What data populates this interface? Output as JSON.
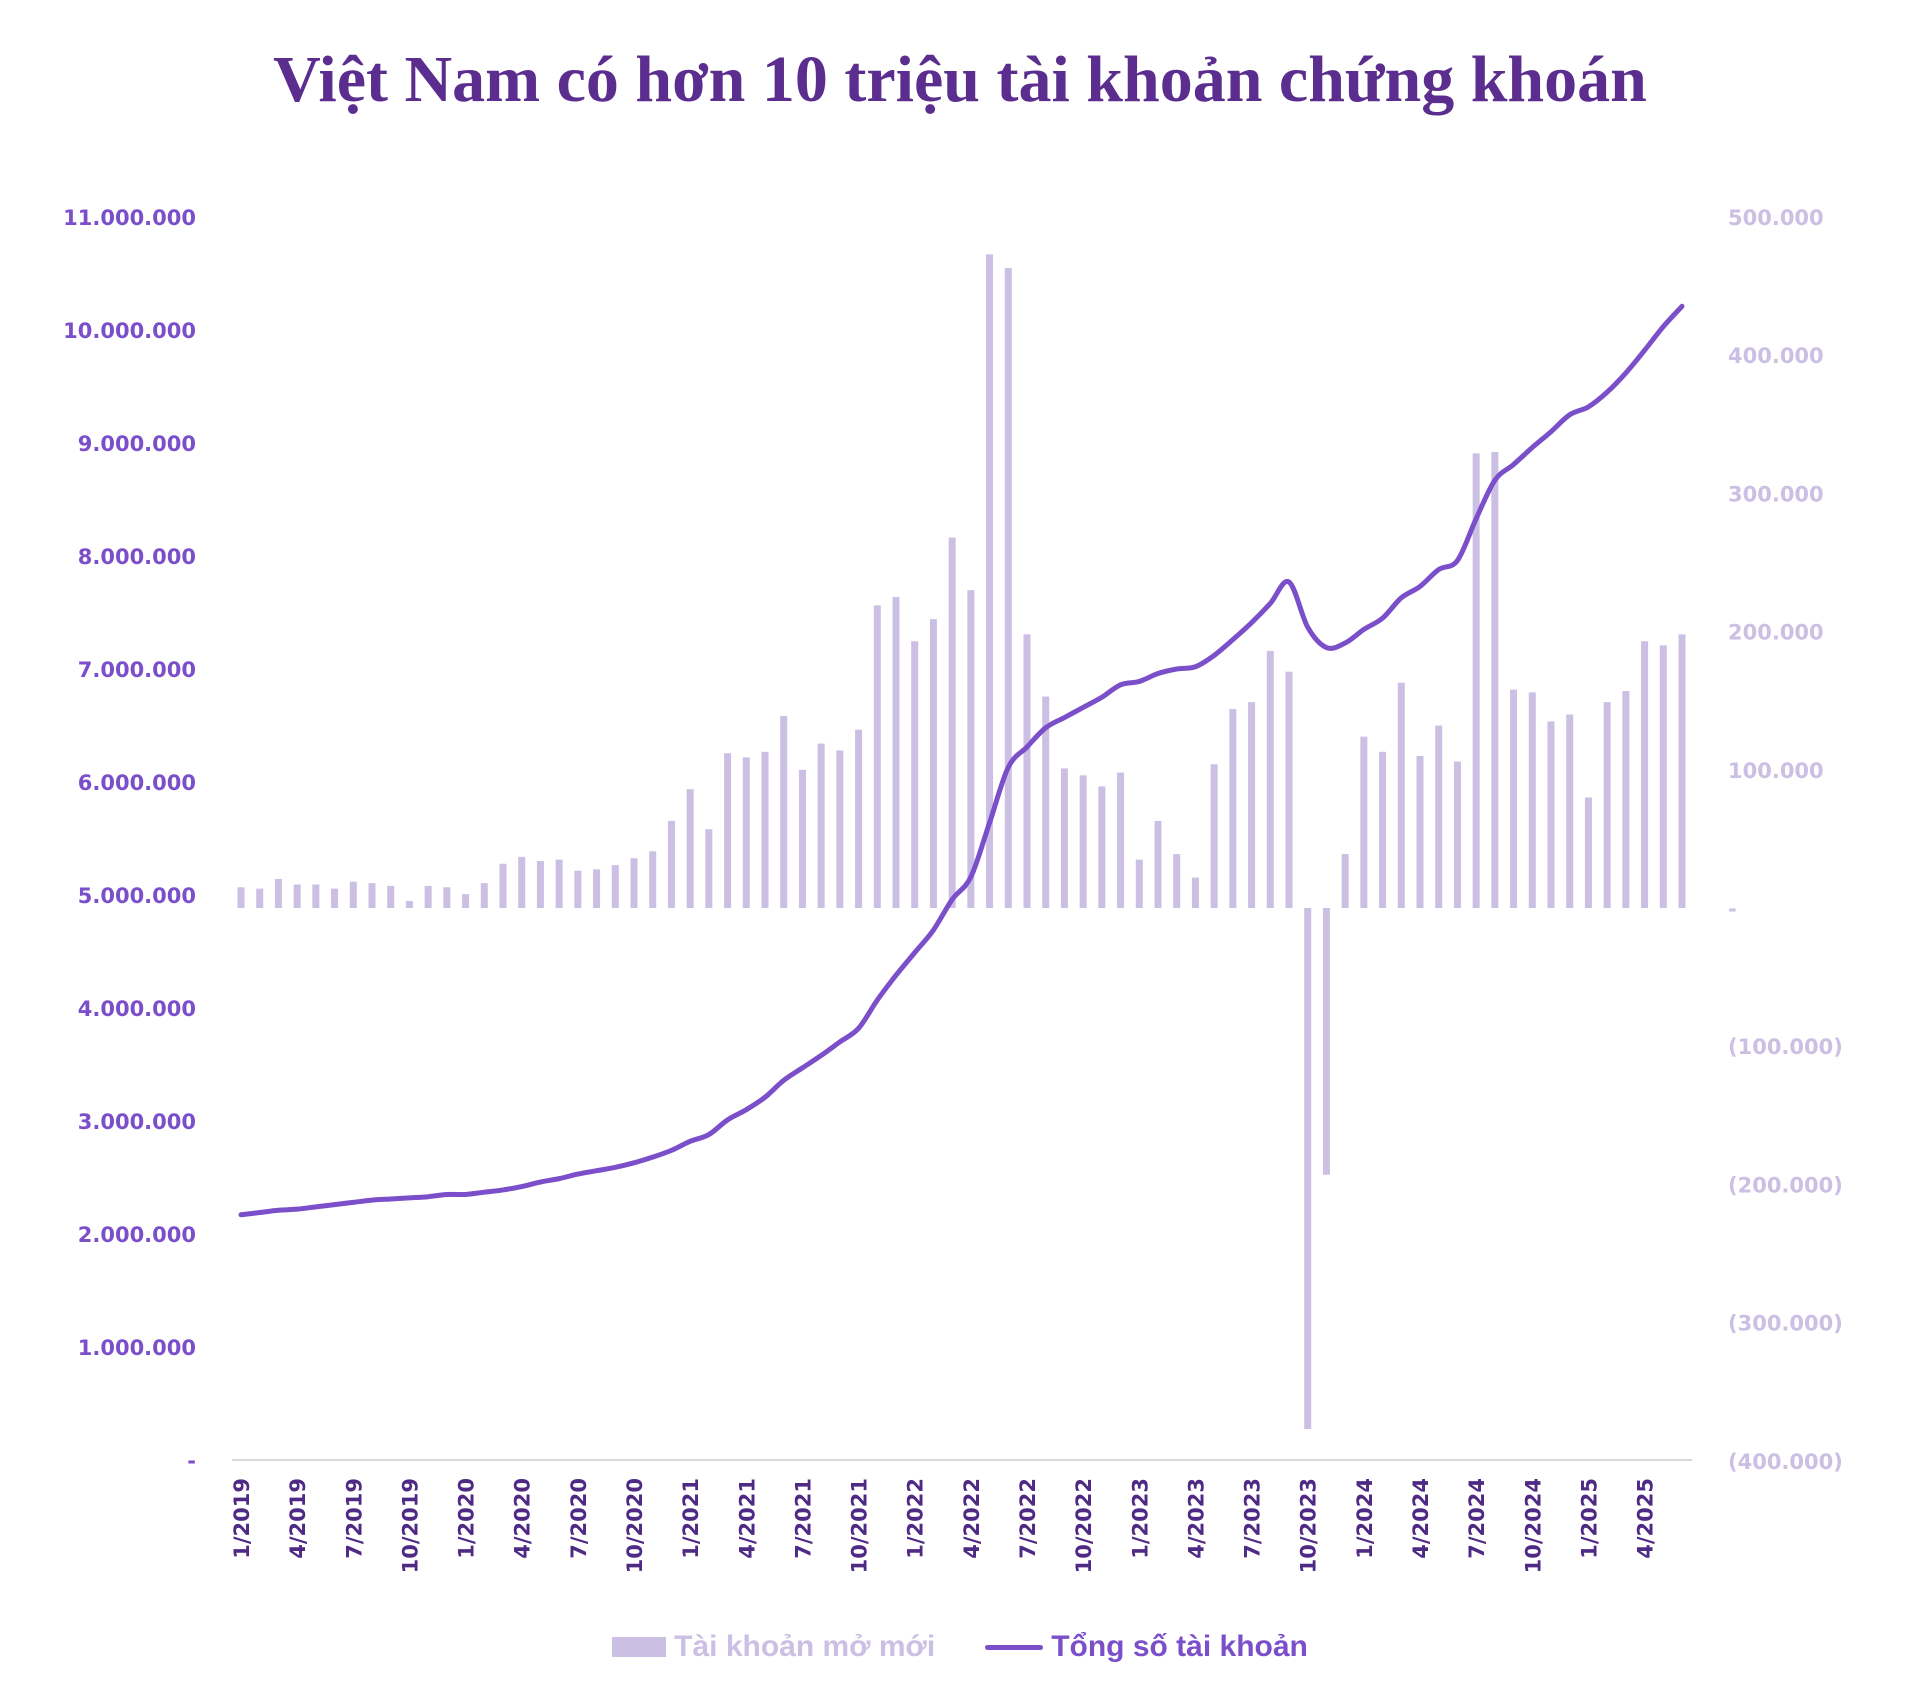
{
  "title": "Việt Nam có hơn 10 triệu tài khoản chứng khoán",
  "legend": {
    "bar_label": "Tài khoản mở mới",
    "line_label": "Tổng số tài khoản"
  },
  "colors": {
    "title": "#5b2d8e",
    "bar": "#cbbfe3",
    "line": "#7b4fc9",
    "left_axis_text": "#7b4fc9",
    "right_axis_text": "#cbbfe3",
    "x_axis_text": "#4e2a84",
    "axis_line": "#d9d9d9"
  },
  "left_axis": {
    "ticks": [
      "-",
      "1.000.000",
      "2.000.000",
      "3.000.000",
      "4.000.000",
      "5.000.000",
      "6.000.000",
      "7.000.000",
      "8.000.000",
      "9.000.000",
      "10.000.000",
      "11.000.000"
    ],
    "values": [
      0,
      1000000,
      2000000,
      3000000,
      4000000,
      5000000,
      6000000,
      7000000,
      8000000,
      9000000,
      10000000,
      11000000
    ]
  },
  "right_axis": {
    "ticks": [
      "(400.000)",
      "(300.000)",
      "(200.000)",
      "(100.000)",
      "-",
      "100.000",
      "200.000",
      "300.000",
      "400.000",
      "500.000"
    ],
    "values": [
      -400000,
      -300000,
      -200000,
      -100000,
      0,
      100000,
      200000,
      300000,
      400000,
      500000
    ]
  },
  "x_axis": {
    "tick_labels": [
      "1/2019",
      "4/2019",
      "7/2019",
      "10/2019",
      "1/2020",
      "4/2020",
      "7/2020",
      "10/2020",
      "1/2021",
      "4/2021",
      "7/2021",
      "10/2021",
      "1/2022",
      "4/2022",
      "7/2022",
      "10/2022",
      "1/2023",
      "4/2023",
      "7/2023",
      "10/2023",
      "1/2024",
      "4/2024",
      "7/2024",
      "10/2024",
      "1/2025",
      "4/2025"
    ]
  },
  "chart_data": {
    "type": "bar+line",
    "title": "Việt Nam có hơn 10 triệu tài khoản chứng khoán",
    "xlabel": "",
    "ylabel_left": "Tổng số tài khoản",
    "ylabel_right": "Tài khoản mở mới",
    "ylim_left": [
      0,
      11000000
    ],
    "ylim_right": [
      -400000,
      500000
    ],
    "legend_position": "bottom",
    "grid": false,
    "categories": [
      "1/2019",
      "2/2019",
      "3/2019",
      "4/2019",
      "5/2019",
      "6/2019",
      "7/2019",
      "8/2019",
      "9/2019",
      "10/2019",
      "11/2019",
      "12/2019",
      "1/2020",
      "2/2020",
      "3/2020",
      "4/2020",
      "5/2020",
      "6/2020",
      "7/2020",
      "8/2020",
      "9/2020",
      "10/2020",
      "11/2020",
      "12/2020",
      "1/2021",
      "2/2021",
      "3/2021",
      "4/2021",
      "5/2021",
      "6/2021",
      "7/2021",
      "8/2021",
      "9/2021",
      "10/2021",
      "11/2021",
      "12/2021",
      "1/2022",
      "2/2022",
      "3/2022",
      "4/2022",
      "5/2022",
      "6/2022",
      "7/2022",
      "8/2022",
      "9/2022",
      "10/2022",
      "11/2022",
      "12/2022",
      "1/2023",
      "2/2023",
      "3/2023",
      "4/2023",
      "5/2023",
      "6/2023",
      "7/2023",
      "8/2023",
      "9/2023",
      "10/2023",
      "11/2023",
      "12/2023",
      "1/2024",
      "2/2024",
      "3/2024",
      "4/2024",
      "5/2024",
      "6/2024",
      "7/2024",
      "8/2024",
      "9/2024",
      "10/2024",
      "11/2024",
      "12/2024",
      "1/2025",
      "2/2025",
      "3/2025",
      "4/2025",
      "5/2025",
      "6/2025"
    ],
    "series": [
      {
        "name": "Tài khoản mở mới",
        "type": "bar",
        "axis": "right",
        "values": [
          15000,
          14000,
          21000,
          17000,
          17000,
          14000,
          19000,
          18000,
          16000,
          5000,
          16000,
          15000,
          10000,
          18000,
          32000,
          37000,
          34000,
          35000,
          27000,
          28000,
          31000,
          36000,
          41000,
          63000,
          86000,
          57000,
          112000,
          109000,
          113000,
          139000,
          100000,
          119000,
          114000,
          129000,
          219000,
          225000,
          193000,
          209000,
          268000,
          230000,
          473000,
          463000,
          198000,
          153000,
          101000,
          96000,
          88000,
          98000,
          35000,
          63000,
          39000,
          22000,
          104000,
          144000,
          149000,
          186000,
          171000,
          -377000,
          -193000,
          39000,
          124000,
          113000,
          163000,
          110000,
          132000,
          106000,
          329000,
          330000,
          158000,
          156000,
          135000,
          140000,
          80000,
          149000,
          157000,
          193000,
          190000,
          198000
        ]
      },
      {
        "name": "Tổng số tài khoản",
        "type": "line",
        "axis": "left",
        "values": [
          2170000,
          2190000,
          2210000,
          2220000,
          2240000,
          2260000,
          2280000,
          2300000,
          2310000,
          2320000,
          2330000,
          2350000,
          2350000,
          2370000,
          2390000,
          2420000,
          2460000,
          2490000,
          2530000,
          2560000,
          2590000,
          2630000,
          2680000,
          2740000,
          2820000,
          2880000,
          3010000,
          3100000,
          3210000,
          3360000,
          3470000,
          3580000,
          3700000,
          3820000,
          4070000,
          4290000,
          4490000,
          4690000,
          4960000,
          5160000,
          5640000,
          6130000,
          6310000,
          6480000,
          6570000,
          6660000,
          6750000,
          6860000,
          6890000,
          6960000,
          7000000,
          7020000,
          7120000,
          7260000,
          7410000,
          7580000,
          7770000,
          7370000,
          7190000,
          7230000,
          7350000,
          7450000,
          7630000,
          7730000,
          7880000,
          7960000,
          8330000,
          8670000,
          8810000,
          8960000,
          9100000,
          9250000,
          9320000,
          9450000,
          9620000,
          9820000,
          10030000,
          10210000
        ]
      }
    ]
  }
}
